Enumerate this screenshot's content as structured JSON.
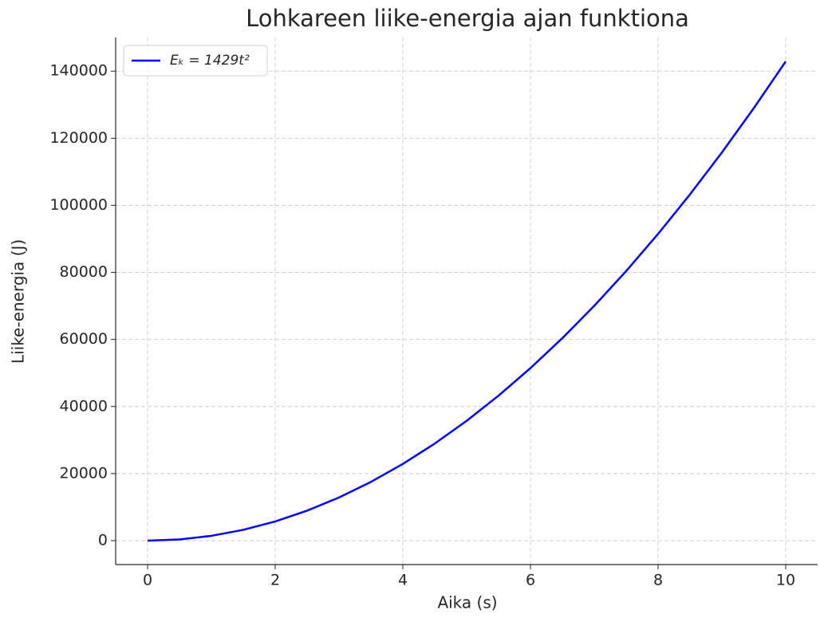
{
  "chart_data": {
    "type": "line",
    "title": "Lohkareen liike-energia ajan funktiona",
    "x_label": "Aika (s)",
    "y_label": "Liike-energia (J)",
    "x": [
      0,
      0.5,
      1,
      1.5,
      2,
      2.5,
      3,
      3.5,
      4,
      4.5,
      5,
      5.5,
      6,
      6.5,
      7,
      7.5,
      8,
      8.5,
      9,
      9.5,
      10
    ],
    "series": [
      {
        "name": "Eₖ = 1429t²",
        "color": "#0000ff",
        "values": [
          0,
          357.25,
          1429,
          3215.25,
          5716,
          8931.25,
          12861,
          17505.25,
          22864,
          28937.25,
          35725,
          43227.25,
          51444,
          60375.25,
          70021,
          80381.25,
          91456,
          103245.25,
          115749,
          128967.25,
          142900
        ]
      }
    ],
    "xlim": [
      -0.5,
      10.5
    ],
    "ylim": [
      -7145,
      150045
    ],
    "xticks": [
      0,
      2,
      4,
      6,
      8,
      10
    ],
    "yticks": [
      0,
      20000,
      40000,
      60000,
      80000,
      100000,
      120000,
      140000
    ],
    "grid": true,
    "legend": "upper-left"
  }
}
